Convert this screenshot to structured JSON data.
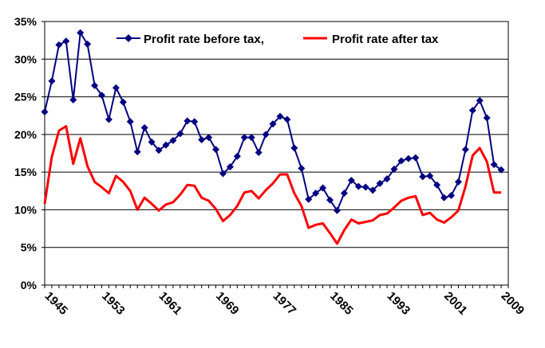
{
  "chart_data": {
    "type": "line",
    "title": "",
    "xlabel": "",
    "ylabel": "",
    "ylim": [
      0,
      35
    ],
    "yticks": [
      0,
      5,
      10,
      15,
      20,
      25,
      30,
      35
    ],
    "ytick_labels": [
      "0%",
      "5%",
      "10%",
      "15%",
      "20%",
      "25%",
      "30%",
      "35%"
    ],
    "xlim": [
      1944,
      2009
    ],
    "xticks": [
      1945,
      1953,
      1961,
      1969,
      1977,
      1985,
      1993,
      2001,
      2009
    ],
    "xtick_labels": [
      "1945",
      "1953",
      "1961",
      "1969",
      "1977",
      "1985",
      "1993",
      "2001",
      "2009"
    ],
    "grid": "horizontal",
    "legend_position": "top",
    "series": [
      {
        "name": "Profit rate before tax,",
        "color": "#000080",
        "marker": "diamond",
        "x": [
          1944,
          1945,
          1946,
          1947,
          1948,
          1949,
          1950,
          1951,
          1952,
          1953,
          1954,
          1955,
          1956,
          1957,
          1958,
          1959,
          1960,
          1961,
          1962,
          1963,
          1964,
          1965,
          1966,
          1967,
          1968,
          1969,
          1970,
          1971,
          1972,
          1973,
          1974,
          1975,
          1976,
          1977,
          1978,
          1979,
          1980,
          1981,
          1982,
          1983,
          1984,
          1985,
          1986,
          1987,
          1988,
          1989,
          1990,
          1991,
          1992,
          1993,
          1994,
          1995,
          1996,
          1997,
          1998,
          1999,
          2000,
          2001,
          2002,
          2003,
          2004,
          2005,
          2006,
          2007,
          2008
        ],
        "values": [
          23.0,
          27.1,
          31.9,
          32.4,
          24.6,
          33.5,
          32.0,
          26.5,
          25.2,
          22.0,
          26.2,
          24.3,
          21.7,
          17.7,
          20.9,
          19.0,
          17.9,
          18.6,
          19.2,
          20.1,
          21.8,
          21.7,
          19.3,
          19.6,
          18.0,
          14.8,
          15.7,
          17.1,
          19.6,
          19.6,
          17.6,
          20.0,
          21.4,
          22.4,
          22.0,
          18.2,
          15.5,
          11.4,
          12.2,
          12.9,
          11.3,
          9.9,
          12.2,
          13.9,
          13.1,
          13.0,
          12.6,
          13.5,
          14.1,
          15.4,
          16.5,
          16.8,
          16.9,
          14.4,
          14.5,
          13.3,
          11.6,
          11.9,
          13.7,
          18.0,
          23.2,
          24.5,
          22.2,
          16.0,
          15.3
        ]
      },
      {
        "name": "Profit rate after tax",
        "color": "#ff0000",
        "marker": "none",
        "x": [
          1944,
          1945,
          1946,
          1947,
          1948,
          1949,
          1950,
          1951,
          1952,
          1953,
          1954,
          1955,
          1956,
          1957,
          1958,
          1959,
          1960,
          1961,
          1962,
          1963,
          1964,
          1965,
          1966,
          1967,
          1968,
          1969,
          1970,
          1971,
          1972,
          1973,
          1974,
          1975,
          1976,
          1977,
          1978,
          1979,
          1980,
          1981,
          1982,
          1983,
          1984,
          1985,
          1986,
          1987,
          1988,
          1989,
          1990,
          1991,
          1992,
          1993,
          1994,
          1995,
          1996,
          1997,
          1998,
          1999,
          2000,
          2001,
          2002,
          2003,
          2004,
          2005,
          2006,
          2007,
          2008
        ],
        "values": [
          10.8,
          17.0,
          20.5,
          21.1,
          16.1,
          19.5,
          15.8,
          13.7,
          13.0,
          12.2,
          14.5,
          13.7,
          12.5,
          10.0,
          11.6,
          10.8,
          9.9,
          10.7,
          11.0,
          12.0,
          13.3,
          13.2,
          11.6,
          11.2,
          10.1,
          8.5,
          9.3,
          10.5,
          12.3,
          12.5,
          11.5,
          12.6,
          13.5,
          14.7,
          14.7,
          12.2,
          10.5,
          7.6,
          8.0,
          8.2,
          6.9,
          5.5,
          7.3,
          8.7,
          8.2,
          8.4,
          8.6,
          9.3,
          9.5,
          10.3,
          11.2,
          11.6,
          11.8,
          9.3,
          9.6,
          8.7,
          8.3,
          9.0,
          9.9,
          13.1,
          17.2,
          18.2,
          16.4,
          12.3,
          12.3
        ]
      }
    ]
  }
}
